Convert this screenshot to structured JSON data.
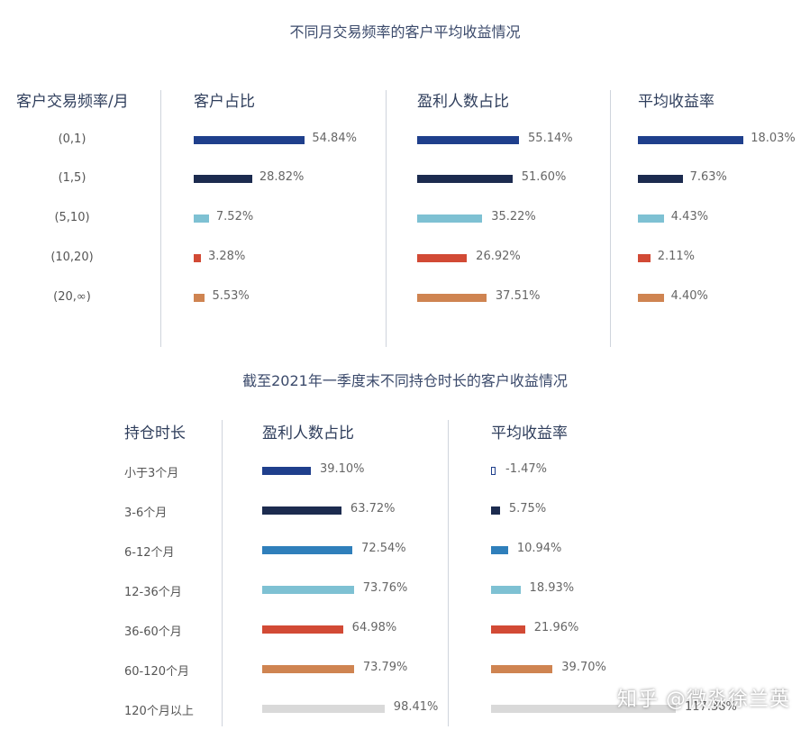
{
  "colors": {
    "navy": "#1f3f8c",
    "dark": "#1c2b4f",
    "blue": "#2f7fbb",
    "light": "#7ec1d3",
    "red": "#d24a35",
    "orange": "#cf8451",
    "gray": "#d9d9d9"
  },
  "chart_data": [
    {
      "type": "bar",
      "title": "不同月交易频率的客户平均收益情况",
      "category_header": "客户交易频率/月",
      "categories": [
        "(0,1)",
        "(1,5)",
        "(5,10)",
        "(10,20)",
        "(20,∞)"
      ],
      "category_colors": [
        "navy",
        "dark",
        "light",
        "red",
        "orange"
      ],
      "series": [
        {
          "name": "客户占比",
          "values": [
            54.84,
            28.82,
            7.52,
            3.28,
            5.53
          ],
          "labels": [
            "54.84%",
            "28.82%",
            "7.52%",
            "3.28%",
            "5.53%"
          ]
        },
        {
          "name": "盈利人数占比",
          "values": [
            55.14,
            51.6,
            35.22,
            26.92,
            37.51
          ],
          "labels": [
            "55.14%",
            "51.60%",
            "35.22%",
            "26.92%",
            "37.51%"
          ]
        },
        {
          "name": "平均收益率",
          "values": [
            18.03,
            7.63,
            4.43,
            2.11,
            4.4
          ],
          "labels": [
            "18.03%",
            "7.63%",
            "4.43%",
            "2.11%",
            "4.40%"
          ]
        }
      ]
    },
    {
      "type": "bar",
      "title": "截至2021年一季度末不同持仓时长的客户收益情况",
      "category_header": "持仓时长",
      "categories": [
        "小于3个月",
        "3-6个月",
        "6-12个月",
        "12-36个月",
        "36-60个月",
        "60-120个月",
        "120个月以上"
      ],
      "category_colors": [
        "navy",
        "dark",
        "blue",
        "light",
        "red",
        "orange",
        "gray"
      ],
      "series": [
        {
          "name": "盈利人数占比",
          "values": [
            39.1,
            63.72,
            72.54,
            73.76,
            64.98,
            73.79,
            98.41
          ],
          "labels": [
            "39.10%",
            "63.72%",
            "72.54%",
            "73.76%",
            "64.98%",
            "73.79%",
            "98.41%"
          ]
        },
        {
          "name": "平均收益率",
          "values": [
            -1.47,
            5.75,
            10.94,
            18.93,
            21.96,
            39.7,
            117.38
          ],
          "labels": [
            "-1.47%",
            "5.75%",
            "10.94%",
            "18.93%",
            "21.96%",
            "39.70%",
            "117.38%"
          ]
        }
      ]
    }
  ],
  "watermark": "知乎 @微淼徐兰英"
}
